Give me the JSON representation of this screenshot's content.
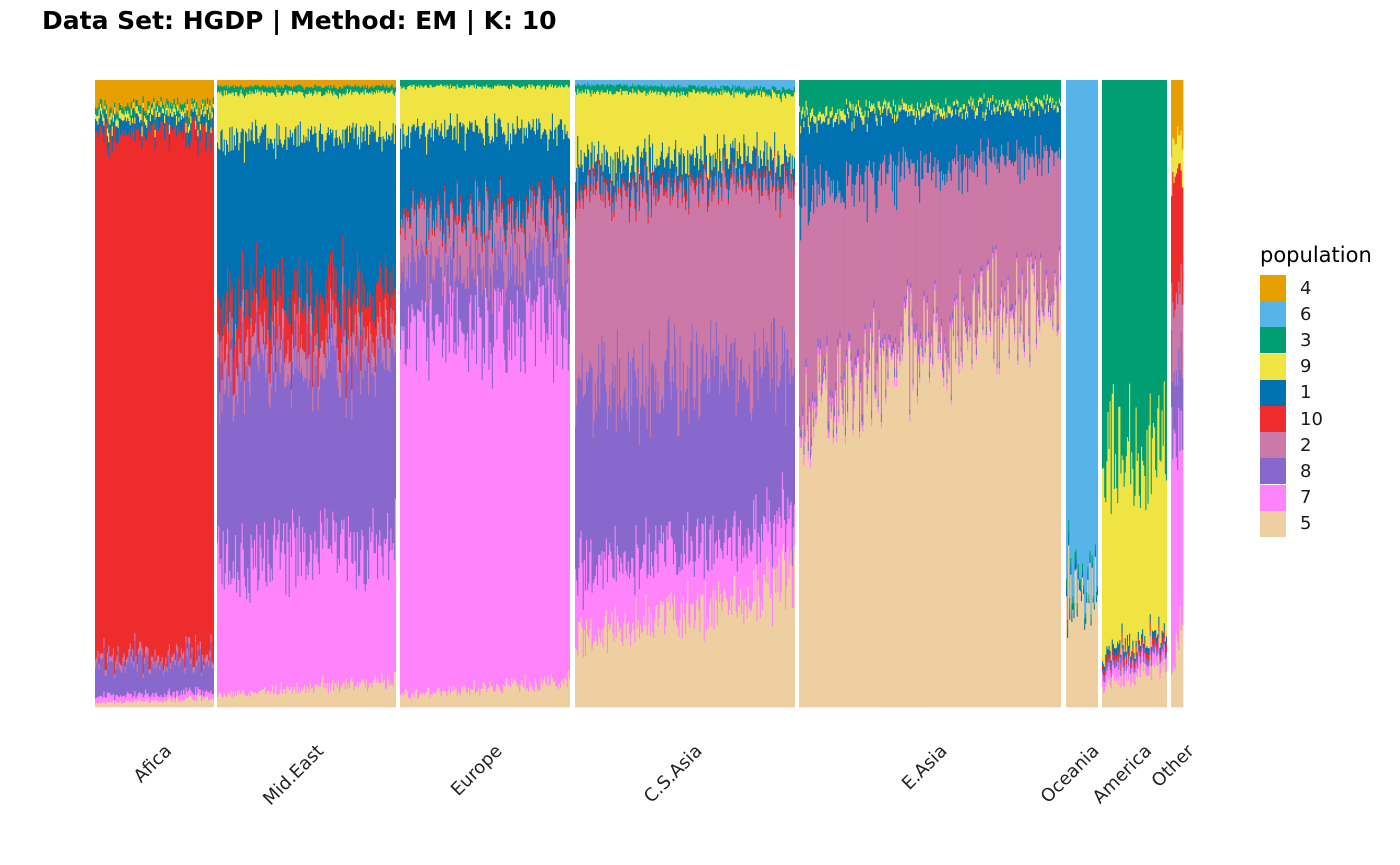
{
  "chart_data": {
    "type": "bar",
    "stacked": true,
    "normalized": true,
    "title": "Data Set: HGDP | Method: EM | K: 10",
    "xlabel": "",
    "ylabel": "",
    "ylim": [
      0,
      1
    ],
    "grid": false,
    "legend": {
      "title": "population",
      "placement": "right"
    },
    "series": [
      {
        "name": "4",
        "color": "#E69F00"
      },
      {
        "name": "6",
        "color": "#56B4E9"
      },
      {
        "name": "3",
        "color": "#009E73"
      },
      {
        "name": "9",
        "color": "#F0E442"
      },
      {
        "name": "1",
        "color": "#0072B2"
      },
      {
        "name": "10",
        "color": "#EE2C2C"
      },
      {
        "name": "2",
        "color": "#CC79A7"
      },
      {
        "name": "8",
        "color": "#8968CD"
      },
      {
        "name": "7",
        "color": "#FF83FA"
      },
      {
        "name": "5",
        "color": "#EECFA1"
      }
    ],
    "stack_order_bottom_to_top": [
      "5",
      "7",
      "8",
      "2",
      "10",
      "1",
      "9",
      "3",
      "6",
      "4"
    ],
    "groups": [
      {
        "label": "Afica",
        "n_individuals": 100,
        "mean_proportions": {
          "5": 0.01,
          "7": 0.01,
          "8": 0.05,
          "2": 0.01,
          "10": 0.84,
          "1": 0.02,
          "9": 0.01,
          "3": 0.01,
          "6": 0.0,
          "4": 0.04
        }
      },
      {
        "label": "Mid.East",
        "n_individuals": 160,
        "mean_proportions": {
          "5": 0.03,
          "7": 0.22,
          "8": 0.3,
          "2": 0.04,
          "10": 0.07,
          "1": 0.25,
          "9": 0.07,
          "3": 0.01,
          "6": 0.0,
          "4": 0.01
        }
      },
      {
        "label": "Europe",
        "n_individuals": 150,
        "mean_proportions": {
          "5": 0.03,
          "7": 0.58,
          "8": 0.1,
          "2": 0.07,
          "10": 0.01,
          "1": 0.13,
          "9": 0.07,
          "3": 0.01,
          "6": 0.0,
          "4": 0.0
        }
      },
      {
        "label": "C.S.Asia",
        "n_individuals": 200,
        "mean_proportions": {
          "5": 0.15,
          "7": 0.1,
          "8": 0.28,
          "2": 0.3,
          "10": 0.01,
          "1": 0.04,
          "9": 0.1,
          "3": 0.01,
          "6": 0.01,
          "4": 0.0
        }
      },
      {
        "label": "E.Asia",
        "n_individuals": 240,
        "mean_proportions": {
          "5": 0.58,
          "7": 0.01,
          "8": 0.01,
          "2": 0.26,
          "10": 0.0,
          "1": 0.09,
          "9": 0.01,
          "3": 0.04,
          "6": 0.0,
          "4": 0.0
        }
      },
      {
        "label": "Oceania",
        "n_individuals": 30,
        "mean_proportions": {
          "5": 0.18,
          "7": 0.0,
          "8": 0.0,
          "2": 0.0,
          "10": 0.0,
          "1": 0.01,
          "9": 0.0,
          "3": 0.01,
          "6": 0.8,
          "4": 0.0
        }
      },
      {
        "label": "America",
        "n_individuals": 60,
        "mean_proportions": {
          "5": 0.05,
          "7": 0.02,
          "8": 0.01,
          "2": 0.0,
          "10": 0.01,
          "1": 0.01,
          "9": 0.3,
          "3": 0.6,
          "6": 0.0,
          "4": 0.0
        }
      },
      {
        "label": "Other",
        "n_individuals": 10,
        "mean_proportions": {
          "5": 0.1,
          "7": 0.35,
          "8": 0.1,
          "2": 0.1,
          "10": 0.2,
          "1": 0.0,
          "9": 0.05,
          "3": 0.0,
          "6": 0.0,
          "4": 0.1
        }
      }
    ]
  }
}
